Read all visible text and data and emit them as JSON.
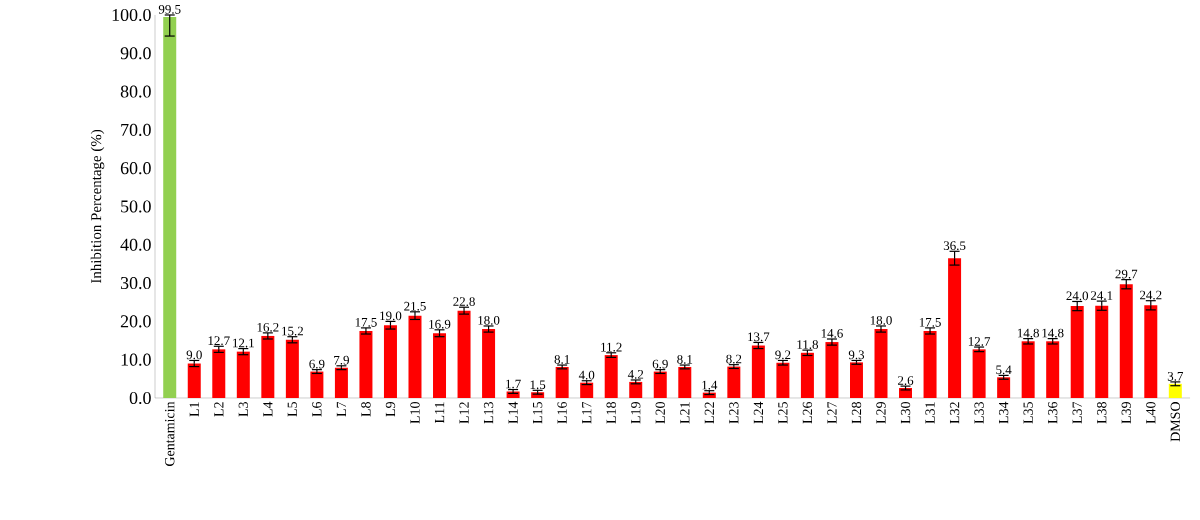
{
  "chart_data": {
    "type": "bar",
    "ylabel": "Inhibition Percentage (%)",
    "categories": [
      "Gentamicin",
      "L1",
      "L2",
      "L3",
      "L4",
      "L5",
      "L6",
      "L7",
      "L8",
      "L9",
      "L10",
      "L11",
      "L12",
      "L13",
      "L14",
      "L15",
      "L16",
      "L17",
      "L18",
      "L19",
      "L20",
      "L21",
      "L22",
      "L23",
      "L24",
      "L25",
      "L26",
      "L27",
      "L28",
      "L29",
      "L30",
      "L31",
      "L32",
      "L33",
      "L34",
      "L35",
      "L36",
      "L37",
      "L38",
      "L39",
      "L40",
      "DMSO"
    ],
    "values": [
      99.5,
      9.0,
      12.7,
      12.1,
      16.2,
      15.2,
      6.9,
      7.9,
      17.5,
      19.0,
      21.5,
      16.9,
      22.8,
      18.0,
      1.7,
      1.5,
      8.1,
      4.0,
      11.2,
      4.2,
      6.9,
      8.1,
      1.4,
      8.2,
      13.7,
      9.2,
      11.8,
      14.6,
      9.3,
      18.0,
      2.6,
      17.5,
      36.5,
      12.7,
      5.4,
      14.8,
      14.8,
      24.0,
      24.1,
      29.7,
      24.2,
      3.7
    ],
    "value_labels": [
      "99.5",
      "9.0",
      "12.7",
      "12.1",
      "16.2",
      "15.2",
      "6.9",
      "7.9",
      "17.5",
      "19.0",
      "21.5",
      "16.9",
      "22.8",
      "18.0",
      "1.7",
      "1.5",
      "8.1",
      "4.0",
      "11.2",
      "4.2",
      "6.9",
      "8.1",
      "1.4",
      "8.2",
      "13.7",
      "9.2",
      "11.8",
      "14.6",
      "9.3",
      "18.0",
      "2.6",
      "17.5",
      "36.5",
      "12.7",
      "5.4",
      "14.8",
      "14.8",
      "24.0",
      "24.1",
      "29.7",
      "24.2",
      "3.7"
    ],
    "errors": [
      [
        94.5,
        100
      ],
      0.8,
      0.8,
      0.8,
      0.8,
      0.8,
      0.5,
      0.5,
      0.8,
      1.0,
      1.0,
      0.9,
      0.9,
      0.8,
      0.5,
      0.5,
      0.5,
      0.5,
      0.6,
      0.5,
      0.5,
      0.5,
      0.5,
      0.5,
      0.8,
      0.6,
      0.7,
      0.8,
      0.5,
      0.8,
      0.5,
      0.8,
      1.8,
      0.6,
      0.5,
      0.7,
      0.7,
      1.2,
      1.2,
      1.2,
      1.2,
      0.5
    ],
    "colors": [
      "#92d050",
      "#ff0000",
      "#ff0000",
      "#ff0000",
      "#ff0000",
      "#ff0000",
      "#ff0000",
      "#ff0000",
      "#ff0000",
      "#ff0000",
      "#ff0000",
      "#ff0000",
      "#ff0000",
      "#ff0000",
      "#ff0000",
      "#ff0000",
      "#ff0000",
      "#ff0000",
      "#ff0000",
      "#ff0000",
      "#ff0000",
      "#ff0000",
      "#ff0000",
      "#ff0000",
      "#ff0000",
      "#ff0000",
      "#ff0000",
      "#ff0000",
      "#ff0000",
      "#ff0000",
      "#ff0000",
      "#ff0000",
      "#ff0000",
      "#ff0000",
      "#ff0000",
      "#ff0000",
      "#ff0000",
      "#ff0000",
      "#ff0000",
      "#ff0000",
      "#ff0000",
      "#ffff00"
    ],
    "ylim": [
      0,
      100
    ],
    "yticks": [
      {
        "value": 0,
        "label": "0.0"
      },
      {
        "value": 10,
        "label": "10.0"
      },
      {
        "value": 20,
        "label": "20.0"
      },
      {
        "value": 30,
        "label": "30.0"
      },
      {
        "value": 40,
        "label": "40.0"
      },
      {
        "value": 50,
        "label": "50.0"
      },
      {
        "value": 60,
        "label": "60.0"
      },
      {
        "value": 70,
        "label": "70.0"
      },
      {
        "value": 80,
        "label": "80.0"
      },
      {
        "value": 90,
        "label": "90.0"
      },
      {
        "value": 100,
        "label": "100.0"
      }
    ],
    "grid": false
  }
}
